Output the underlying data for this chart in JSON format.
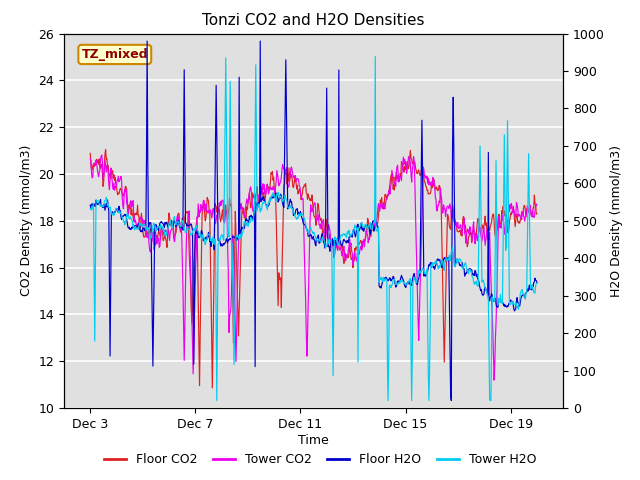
{
  "title": "Tonzi CO2 and H2O Densities",
  "xlabel": "Time",
  "ylabel_left": "CO2 Density (mmol/m3)",
  "ylabel_right": "H2O Density (mmol/m3)",
  "annotation_text": "TZ_mixed",
  "annotation_color": "#8b0000",
  "annotation_bg": "#ffffcc",
  "annotation_border": "#cc8800",
  "co2_ylim": [
    10,
    26
  ],
  "co2_yticks": [
    10,
    12,
    14,
    16,
    18,
    20,
    22,
    24,
    26
  ],
  "h2o_ylim": [
    0,
    1000
  ],
  "h2o_yticks": [
    0,
    100,
    200,
    300,
    400,
    500,
    600,
    700,
    800,
    900,
    1000
  ],
  "xtick_labels": [
    "Dec 3",
    "Dec 7",
    "Dec 11",
    "Dec 15",
    "Dec 19"
  ],
  "xtick_positions": [
    0,
    4,
    8,
    12,
    16
  ],
  "xrange": [
    -1,
    18
  ],
  "floor_co2_color": "#dd2222",
  "tower_co2_color": "#ee00ee",
  "floor_h2o_color": "#0000cc",
  "tower_h2o_color": "#00ccee",
  "bg_color": "#e0e0e0",
  "grid_color": "#ffffff",
  "legend_labels": [
    "Floor CO2",
    "Tower CO2",
    "Floor H2O",
    "Tower H2O"
  ],
  "n_points": 700
}
